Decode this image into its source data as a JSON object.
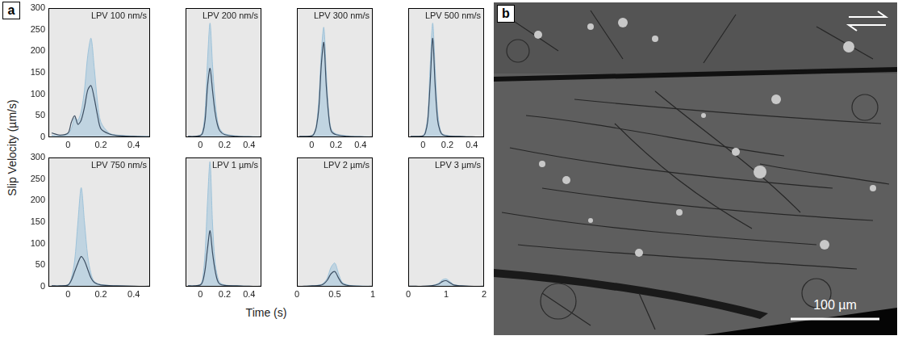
{
  "chart_data": [
    {
      "type": "line",
      "title": "LPV 100 nm/s",
      "x": [
        -0.1,
        -0.05,
        0,
        0.02,
        0.04,
        0.06,
        0.08,
        0.1,
        0.12,
        0.14,
        0.16,
        0.18,
        0.2,
        0.25,
        0.3,
        0.4,
        0.5
      ],
      "series": [
        {
          "type": "area",
          "color": "#9ec3da",
          "values": [
            5,
            3,
            8,
            20,
            45,
            40,
            60,
            110,
            190,
            230,
            160,
            80,
            35,
            10,
            5,
            3,
            2
          ]
        },
        {
          "type": "line",
          "color": "#3d4f63",
          "values": [
            10,
            5,
            10,
            35,
            50,
            30,
            40,
            70,
            110,
            120,
            90,
            50,
            20,
            8,
            4,
            2,
            1
          ]
        }
      ],
      "xlim": [
        -0.12,
        0.5
      ],
      "xticks": [
        0,
        0.2,
        0.4
      ],
      "ylim": [
        0,
        300
      ],
      "yticks": [
        0,
        50,
        100,
        150,
        200,
        250,
        300
      ],
      "grid": false
    },
    {
      "type": "line",
      "title": "LPV 200 nm/s",
      "x": [
        -0.1,
        -0.05,
        0,
        0.02,
        0.04,
        0.06,
        0.08,
        0.1,
        0.12,
        0.14,
        0.16,
        0.2,
        0.3,
        0.4,
        0.5
      ],
      "series": [
        {
          "type": "area",
          "color": "#9ec3da",
          "values": [
            2,
            2,
            5,
            15,
            60,
            180,
            265,
            170,
            90,
            40,
            20,
            8,
            3,
            2,
            1
          ]
        },
        {
          "type": "line",
          "color": "#3d4f63",
          "values": [
            2,
            2,
            4,
            10,
            40,
            120,
            160,
            110,
            60,
            30,
            15,
            6,
            2,
            1,
            1
          ]
        }
      ],
      "xlim": [
        -0.12,
        0.5
      ],
      "xticks": [
        0,
        0.2,
        0.4
      ],
      "ylim": [
        0,
        300
      ],
      "yticks": [
        0,
        50,
        100,
        150,
        200,
        250,
        300
      ],
      "grid": false,
      "tick_labels": "x"
    },
    {
      "type": "line",
      "title": "LPV 300 nm/s",
      "x": [
        -0.1,
        -0.05,
        0,
        0.02,
        0.04,
        0.06,
        0.08,
        0.1,
        0.12,
        0.14,
        0.16,
        0.2,
        0.3,
        0.4,
        0.5
      ],
      "series": [
        {
          "type": "area",
          "color": "#9ec3da",
          "values": [
            2,
            2,
            4,
            10,
            30,
            90,
            200,
            255,
            150,
            60,
            20,
            8,
            3,
            2,
            1
          ]
        },
        {
          "type": "line",
          "color": "#3d4f63",
          "values": [
            2,
            2,
            3,
            8,
            25,
            70,
            170,
            220,
            120,
            50,
            15,
            6,
            2,
            1,
            1
          ]
        }
      ],
      "xlim": [
        -0.12,
        0.5
      ],
      "xticks": [
        0,
        0.2,
        0.4
      ],
      "ylim": [
        0,
        300
      ],
      "yticks": [
        0,
        50,
        100,
        150,
        200,
        250,
        300
      ],
      "grid": false,
      "tick_labels": "x"
    },
    {
      "type": "line",
      "title": "LPV 500 nm/s",
      "x": [
        -0.1,
        -0.05,
        0,
        0.02,
        0.04,
        0.06,
        0.08,
        0.1,
        0.12,
        0.14,
        0.16,
        0.2,
        0.3,
        0.4,
        0.5
      ],
      "series": [
        {
          "type": "area",
          "color": "#9ec3da",
          "values": [
            2,
            2,
            4,
            15,
            50,
            170,
            265,
            160,
            60,
            20,
            8,
            4,
            2,
            1,
            1
          ]
        },
        {
          "type": "line",
          "color": "#3d4f63",
          "values": [
            2,
            2,
            3,
            10,
            40,
            130,
            230,
            120,
            40,
            15,
            6,
            3,
            2,
            1,
            1
          ]
        }
      ],
      "xlim": [
        -0.12,
        0.5
      ],
      "xticks": [
        0,
        0.2,
        0.4
      ],
      "ylim": [
        0,
        300
      ],
      "yticks": [
        0,
        50,
        100,
        150,
        200,
        250,
        300
      ],
      "grid": false,
      "tick_labels": "x"
    },
    {
      "type": "line",
      "title": "LPV 750 nm/s",
      "x": [
        -0.1,
        -0.05,
        0,
        0.02,
        0.04,
        0.06,
        0.08,
        0.1,
        0.12,
        0.14,
        0.16,
        0.2,
        0.3,
        0.4,
        0.5
      ],
      "series": [
        {
          "type": "area",
          "color": "#9ec3da",
          "values": [
            2,
            2,
            5,
            20,
            60,
            150,
            230,
            150,
            70,
            30,
            12,
            5,
            2,
            1,
            1
          ]
        },
        {
          "type": "line",
          "color": "#3d4f63",
          "values": [
            2,
            2,
            4,
            15,
            35,
            55,
            70,
            60,
            40,
            20,
            10,
            4,
            2,
            1,
            1
          ]
        }
      ],
      "xlim": [
        -0.12,
        0.5
      ],
      "xticks": [
        0,
        0.2,
        0.4
      ],
      "ylim": [
        0,
        300
      ],
      "yticks": [
        0,
        50,
        100,
        150,
        200,
        250,
        300
      ],
      "grid": false
    },
    {
      "type": "line",
      "title": "LPV 1 µm/s",
      "x": [
        -0.1,
        -0.05,
        0,
        0.02,
        0.04,
        0.06,
        0.08,
        0.1,
        0.12,
        0.14,
        0.16,
        0.2,
        0.3,
        0.4,
        0.5
      ],
      "series": [
        {
          "type": "area",
          "color": "#9ec3da",
          "values": [
            2,
            2,
            5,
            20,
            80,
            200,
            290,
            150,
            60,
            25,
            10,
            4,
            2,
            1,
            1
          ]
        },
        {
          "type": "line",
          "color": "#3d4f63",
          "values": [
            2,
            2,
            4,
            12,
            40,
            90,
            130,
            80,
            40,
            15,
            6,
            3,
            2,
            1,
            1
          ]
        }
      ],
      "xlim": [
        -0.12,
        0.5
      ],
      "xticks": [
        0,
        0.2,
        0.4
      ],
      "ylim": [
        0,
        300
      ],
      "yticks": [
        0,
        50,
        100,
        150,
        200,
        250,
        300
      ],
      "grid": false,
      "tick_labels": "x"
    },
    {
      "type": "line",
      "title": "LPV 2 µm/s",
      "x": [
        0,
        0.1,
        0.2,
        0.3,
        0.35,
        0.4,
        0.45,
        0.5,
        0.55,
        0.6,
        0.7,
        0.8,
        1
      ],
      "series": [
        {
          "type": "area",
          "color": "#9ec3da",
          "values": [
            1,
            1,
            2,
            4,
            8,
            20,
            45,
            55,
            30,
            10,
            3,
            2,
            1
          ]
        },
        {
          "type": "line",
          "color": "#3d4f63",
          "values": [
            1,
            1,
            2,
            3,
            6,
            15,
            30,
            35,
            20,
            7,
            2,
            1,
            1
          ]
        }
      ],
      "xlim": [
        0,
        1
      ],
      "xticks": [
        0,
        0.5,
        1
      ],
      "ylim": [
        0,
        300
      ],
      "yticks": [
        0,
        50,
        100,
        150,
        200,
        250,
        300
      ],
      "grid": false,
      "tick_labels": "x"
    },
    {
      "type": "line",
      "title": "LPV 3 µm/s",
      "x": [
        0,
        0.2,
        0.4,
        0.6,
        0.8,
        0.9,
        1,
        1.1,
        1.2,
        1.4,
        1.6,
        2
      ],
      "series": [
        {
          "type": "area",
          "color": "#9ec3da",
          "values": [
            1,
            1,
            1,
            2,
            8,
            16,
            18,
            12,
            5,
            2,
            1,
            1
          ]
        },
        {
          "type": "line",
          "color": "#3d4f63",
          "values": [
            1,
            1,
            1,
            2,
            6,
            12,
            14,
            9,
            4,
            2,
            1,
            1
          ]
        }
      ],
      "xlim": [
        0,
        2
      ],
      "xticks": [
        0,
        1,
        2
      ],
      "ylim": [
        0,
        300
      ],
      "yticks": [
        0,
        50,
        100,
        150,
        200,
        250,
        300
      ],
      "grid": false,
      "tick_labels": "x"
    }
  ],
  "figure": {
    "panel_a": {
      "label": "a",
      "xlabel": "Time (s)",
      "ylabel": "Slip Velocity (µm/s)"
    },
    "panel_b": {
      "label": "b",
      "scale_bar": "100 µm"
    }
  }
}
